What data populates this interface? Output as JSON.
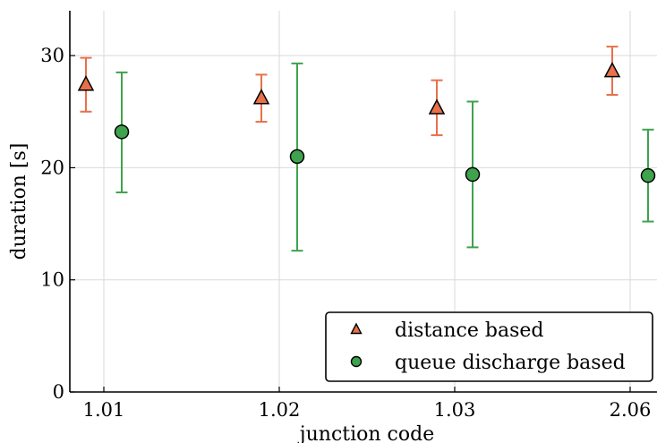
{
  "chart_data": {
    "type": "scatter",
    "xlabel": "junction code",
    "ylabel": "duration [s]",
    "categories": [
      "1.01",
      "1.02",
      "1.03",
      "2.06"
    ],
    "ylim": [
      0,
      34
    ],
    "yticks": [
      0,
      10,
      20,
      30
    ],
    "grid": true,
    "legend_position": "bottom-right",
    "series": [
      {
        "name": "distance based",
        "marker": "triangle",
        "color": "#e8704a",
        "values": [
          27.4,
          26.2,
          25.3,
          28.6
        ],
        "error_low": [
          25.0,
          24.1,
          22.9,
          26.5
        ],
        "error_high": [
          29.8,
          28.3,
          27.8,
          30.8
        ]
      },
      {
        "name": "queue discharge based",
        "marker": "circle",
        "color": "#3fa34d",
        "values": [
          23.2,
          21.0,
          19.4,
          19.3
        ],
        "error_low": [
          17.8,
          12.6,
          12.9,
          15.2
        ],
        "error_high": [
          28.5,
          29.3,
          25.9,
          23.4
        ]
      }
    ]
  }
}
